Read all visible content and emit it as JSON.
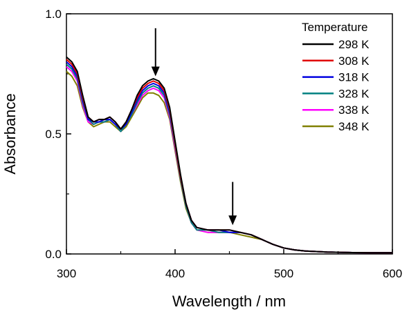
{
  "chart_data": {
    "type": "line",
    "xlabel": "Wavelength / nm",
    "ylabel": "Absorbance",
    "xlim": [
      300,
      600
    ],
    "ylim": [
      0.0,
      1.0
    ],
    "x_ticks": [
      300,
      400,
      500,
      600
    ],
    "y_ticks": [
      0.0,
      0.5,
      1.0
    ],
    "x_tick_labels": [
      "300",
      "400",
      "500",
      "600"
    ],
    "y_tick_labels": [
      "0.0",
      "0.5",
      "1.0"
    ],
    "legend_title": "Temperature",
    "legend_position": "top-right",
    "grid": false,
    "x": [
      300,
      305,
      310,
      315,
      320,
      325,
      330,
      335,
      340,
      345,
      350,
      355,
      360,
      365,
      370,
      375,
      380,
      385,
      390,
      395,
      400,
      405,
      410,
      415,
      420,
      430,
      440,
      450,
      460,
      470,
      480,
      490,
      500,
      510,
      520,
      540,
      560,
      580,
      600
    ],
    "series": [
      {
        "name": "298 K",
        "color": "#000000",
        "values": [
          0.82,
          0.8,
          0.76,
          0.66,
          0.57,
          0.55,
          0.56,
          0.56,
          0.57,
          0.55,
          0.52,
          0.55,
          0.6,
          0.66,
          0.7,
          0.72,
          0.73,
          0.72,
          0.69,
          0.61,
          0.47,
          0.33,
          0.21,
          0.14,
          0.11,
          0.1,
          0.1,
          0.1,
          0.09,
          0.08,
          0.06,
          0.04,
          0.025,
          0.017,
          0.012,
          0.008,
          0.006,
          0.005,
          0.005
        ]
      },
      {
        "name": "308 K",
        "color": "#e00000",
        "values": [
          0.81,
          0.79,
          0.75,
          0.65,
          0.57,
          0.55,
          0.56,
          0.56,
          0.57,
          0.55,
          0.52,
          0.55,
          0.6,
          0.65,
          0.69,
          0.71,
          0.72,
          0.71,
          0.68,
          0.6,
          0.46,
          0.32,
          0.21,
          0.14,
          0.11,
          0.1,
          0.1,
          0.1,
          0.09,
          0.08,
          0.06,
          0.04,
          0.025,
          0.017,
          0.012,
          0.008,
          0.006,
          0.005,
          0.005
        ]
      },
      {
        "name": "318 K",
        "color": "#0000e0",
        "values": [
          0.8,
          0.78,
          0.74,
          0.64,
          0.56,
          0.55,
          0.55,
          0.56,
          0.56,
          0.54,
          0.52,
          0.54,
          0.59,
          0.64,
          0.68,
          0.7,
          0.71,
          0.7,
          0.67,
          0.59,
          0.46,
          0.32,
          0.21,
          0.14,
          0.11,
          0.1,
          0.1,
          0.09,
          0.09,
          0.08,
          0.06,
          0.04,
          0.025,
          0.017,
          0.012,
          0.008,
          0.006,
          0.005,
          0.005
        ]
      },
      {
        "name": "328 K",
        "color": "#008080",
        "values": [
          0.79,
          0.77,
          0.73,
          0.63,
          0.56,
          0.54,
          0.55,
          0.55,
          0.56,
          0.54,
          0.51,
          0.54,
          0.58,
          0.63,
          0.67,
          0.69,
          0.7,
          0.69,
          0.66,
          0.58,
          0.45,
          0.31,
          0.2,
          0.13,
          0.1,
          0.1,
          0.09,
          0.09,
          0.09,
          0.08,
          0.06,
          0.04,
          0.025,
          0.017,
          0.012,
          0.008,
          0.006,
          0.005,
          0.005
        ]
      },
      {
        "name": "338 K",
        "color": "#ff00ff",
        "values": [
          0.78,
          0.76,
          0.72,
          0.62,
          0.55,
          0.54,
          0.55,
          0.55,
          0.56,
          0.54,
          0.51,
          0.54,
          0.58,
          0.62,
          0.66,
          0.68,
          0.69,
          0.68,
          0.65,
          0.57,
          0.44,
          0.31,
          0.2,
          0.13,
          0.1,
          0.09,
          0.09,
          0.09,
          0.09,
          0.08,
          0.06,
          0.04,
          0.025,
          0.017,
          0.012,
          0.008,
          0.006,
          0.005,
          0.005
        ]
      },
      {
        "name": "348 K",
        "color": "#808000",
        "values": [
          0.76,
          0.74,
          0.7,
          0.61,
          0.55,
          0.53,
          0.54,
          0.55,
          0.55,
          0.53,
          0.51,
          0.53,
          0.57,
          0.61,
          0.65,
          0.67,
          0.67,
          0.66,
          0.63,
          0.56,
          0.43,
          0.3,
          0.19,
          0.13,
          0.1,
          0.09,
          0.09,
          0.09,
          0.08,
          0.07,
          0.06,
          0.04,
          0.025,
          0.017,
          0.012,
          0.008,
          0.006,
          0.005,
          0.005
        ]
      }
    ],
    "annotations": [
      {
        "type": "arrow-down",
        "x": 382,
        "y_from": 0.94,
        "y_to": 0.74
      },
      {
        "type": "arrow-down",
        "x": 453,
        "y_from": 0.3,
        "y_to": 0.12
      }
    ]
  }
}
